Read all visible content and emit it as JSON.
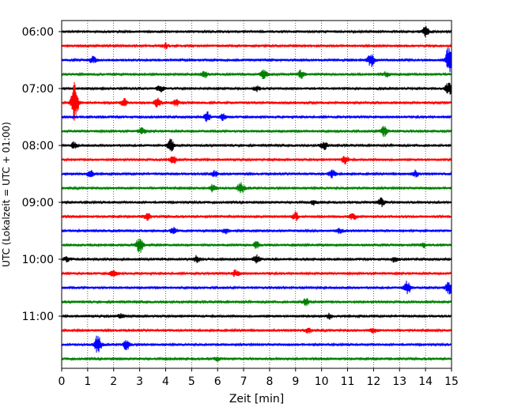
{
  "chart_data": {
    "type": "line",
    "title": "",
    "xlabel": "Zeit  [min]",
    "ylabel": "UTC (Lokalzeit = UTC + 01:00)",
    "xlim": [
      0,
      15
    ],
    "x_ticks": [
      0,
      1,
      2,
      3,
      4,
      5,
      6,
      7,
      8,
      9,
      10,
      11,
      12,
      13,
      14,
      15
    ],
    "y_tick_labels": [
      "06:00",
      "07:00",
      "08:00",
      "09:00",
      "10:00",
      "11:00"
    ],
    "grid": "vertical dotted",
    "trace_colors": [
      "#000000",
      "#ff0000",
      "#0000ff",
      "#008000"
    ],
    "trace_start_minutes": [
      0,
      15,
      30,
      45,
      60,
      75,
      90,
      105,
      120,
      135,
      150,
      165,
      180,
      195,
      210,
      225,
      240,
      255,
      270,
      285,
      300,
      315,
      330,
      345
    ],
    "bursts": [
      [
        {
          "x": 14.0,
          "a": 6
        }
      ],
      [
        {
          "x": 4.0,
          "a": 3
        }
      ],
      [
        {
          "x": 1.2,
          "a": 4
        },
        {
          "x": 11.9,
          "a": 8
        },
        {
          "x": 14.9,
          "a": 18
        }
      ],
      [
        {
          "x": 5.5,
          "a": 4
        },
        {
          "x": 7.8,
          "a": 6
        },
        {
          "x": 9.2,
          "a": 5
        },
        {
          "x": 12.5,
          "a": 3
        }
      ],
      [
        {
          "x": 3.8,
          "a": 4
        },
        {
          "x": 7.5,
          "a": 3
        },
        {
          "x": 14.9,
          "a": 9
        }
      ],
      [
        {
          "x": 0.5,
          "a": 28
        },
        {
          "x": 2.4,
          "a": 5
        },
        {
          "x": 3.7,
          "a": 6
        },
        {
          "x": 4.4,
          "a": 4
        }
      ],
      [
        {
          "x": 5.6,
          "a": 6
        },
        {
          "x": 6.2,
          "a": 4
        }
      ],
      [
        {
          "x": 3.1,
          "a": 4
        },
        {
          "x": 12.4,
          "a": 6
        }
      ],
      [
        {
          "x": 0.5,
          "a": 4
        },
        {
          "x": 4.2,
          "a": 8
        },
        {
          "x": 10.1,
          "a": 6
        }
      ],
      [
        {
          "x": 4.3,
          "a": 5
        },
        {
          "x": 10.9,
          "a": 5
        }
      ],
      [
        {
          "x": 1.1,
          "a": 5
        },
        {
          "x": 5.9,
          "a": 4
        },
        {
          "x": 10.4,
          "a": 5
        },
        {
          "x": 13.6,
          "a": 4
        }
      ],
      [
        {
          "x": 5.8,
          "a": 4
        },
        {
          "x": 6.9,
          "a": 8
        }
      ],
      [
        {
          "x": 9.7,
          "a": 3
        },
        {
          "x": 12.3,
          "a": 5
        }
      ],
      [
        {
          "x": 3.3,
          "a": 4
        },
        {
          "x": 9.0,
          "a": 5
        },
        {
          "x": 11.2,
          "a": 4
        }
      ],
      [
        {
          "x": 4.3,
          "a": 4
        },
        {
          "x": 6.3,
          "a": 3
        },
        {
          "x": 10.7,
          "a": 3
        }
      ],
      [
        {
          "x": 3.0,
          "a": 10
        },
        {
          "x": 7.5,
          "a": 4
        },
        {
          "x": 13.9,
          "a": 3
        }
      ],
      [
        {
          "x": 0.2,
          "a": 3
        },
        {
          "x": 5.2,
          "a": 4
        },
        {
          "x": 7.5,
          "a": 5
        },
        {
          "x": 12.8,
          "a": 3
        }
      ],
      [
        {
          "x": 2.0,
          "a": 4
        },
        {
          "x": 6.7,
          "a": 4
        }
      ],
      [
        {
          "x": 13.3,
          "a": 8
        },
        {
          "x": 14.9,
          "a": 8
        }
      ],
      [
        {
          "x": 9.4,
          "a": 4
        }
      ],
      [
        {
          "x": 2.3,
          "a": 3
        },
        {
          "x": 10.3,
          "a": 3
        }
      ],
      [
        {
          "x": 9.5,
          "a": 3
        },
        {
          "x": 12.0,
          "a": 3
        }
      ],
      [
        {
          "x": 1.4,
          "a": 13
        },
        {
          "x": 2.5,
          "a": 7
        }
      ],
      [
        {
          "x": 6.0,
          "a": 2
        }
      ]
    ]
  }
}
